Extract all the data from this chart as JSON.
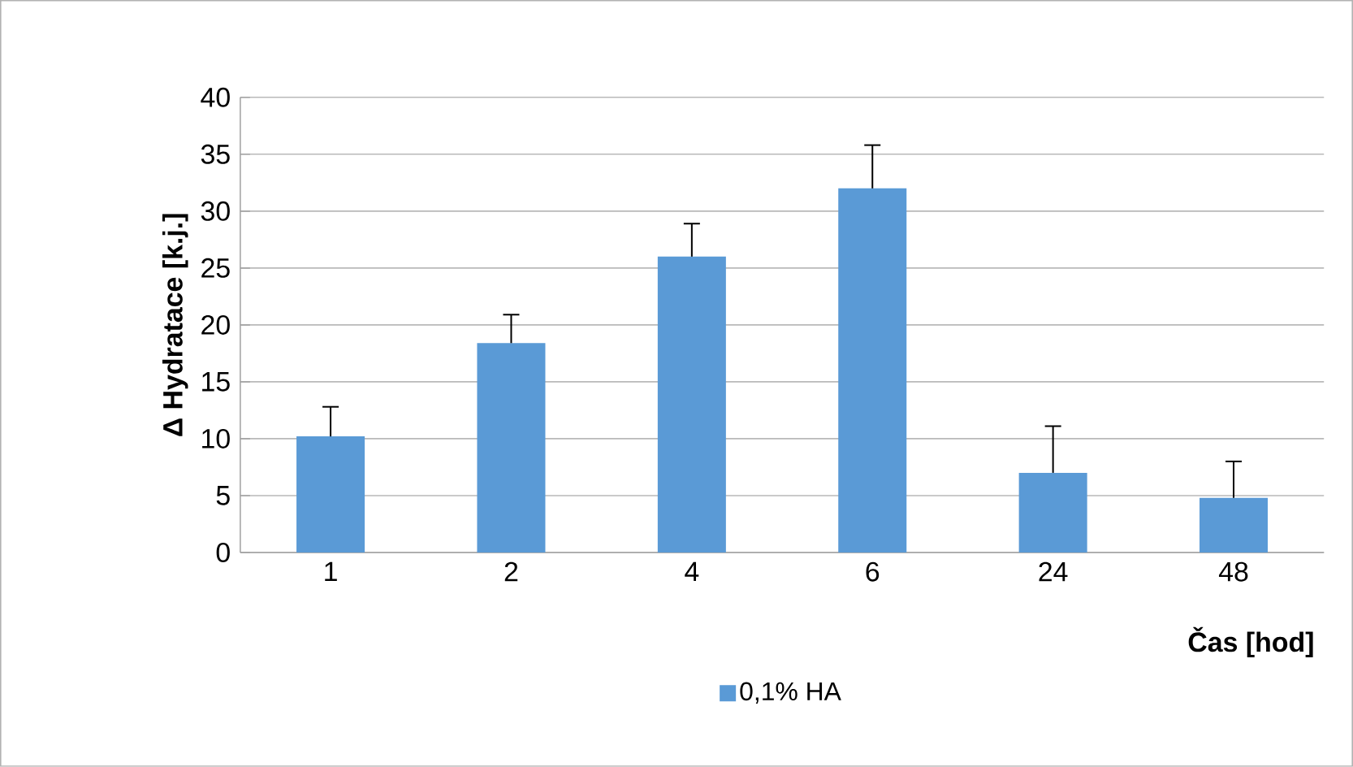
{
  "chart_data": {
    "type": "bar",
    "ylabel": "Δ Hydratace [k.j.]",
    "xlabel": "Čas [hod]",
    "categories": [
      "1",
      "2",
      "4",
      "6",
      "24",
      "48"
    ],
    "series": [
      {
        "name": "0,1% HA",
        "color": "#5a9ad6",
        "values": [
          10.2,
          18.4,
          26,
          32,
          7,
          4.8
        ],
        "errors": [
          [
            10.2,
            12.8
          ],
          [
            18.4,
            20.9
          ],
          [
            26,
            28.9
          ],
          [
            32,
            35.8
          ],
          [
            7,
            11.1
          ],
          [
            4.8,
            8
          ]
        ]
      }
    ],
    "ylim": [
      0,
      40
    ],
    "yticks": [
      0,
      5,
      10,
      15,
      20,
      25,
      30,
      35,
      40
    ],
    "grid": "y",
    "legend": "bottom"
  }
}
